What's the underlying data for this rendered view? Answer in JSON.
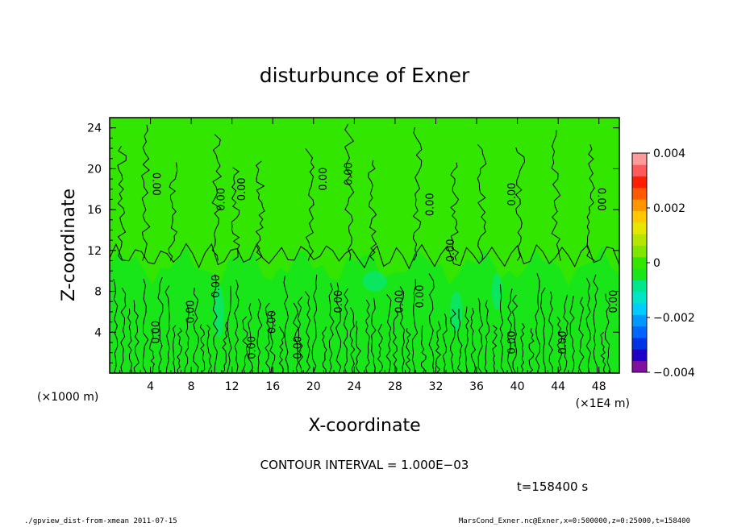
{
  "chart_data": {
    "type": "heatmap",
    "title": "disturbunce of Exner",
    "xlabel": "X-coordinate",
    "ylabel": "Z-coordinate",
    "x_unit_left": "(×1000 m)",
    "x_unit_right": "(×1E4 m)",
    "xlim": [
      0,
      50
    ],
    "ylim": [
      0,
      25
    ],
    "x_ticks": [
      4,
      8,
      12,
      16,
      20,
      24,
      28,
      32,
      36,
      40,
      44,
      48
    ],
    "y_ticks": [
      4,
      8,
      12,
      16,
      20,
      24
    ],
    "colorbar": {
      "min": -0.004,
      "max": 0.004,
      "tick_values": [
        0.004,
        0.002,
        0,
        -0.002,
        -0.004
      ],
      "tick_labels": [
        "0.004",
        "0.002",
        "0",
        "−0.002",
        "−0.004"
      ],
      "colors": [
        "#7f0f9f",
        "#1f00c8",
        "#0033e6",
        "#0066ff",
        "#0099ff",
        "#00ccff",
        "#00e5c8",
        "#00e68c",
        "#19e619",
        "#33e600",
        "#7fe600",
        "#b4e600",
        "#e6e600",
        "#ffc800",
        "#ff9600",
        "#ff5a00",
        "#ff1e00",
        "#ff5a5a",
        "#ff9a9a"
      ]
    },
    "field_colors": {
      "upper": "#33e600",
      "lower": "#19e619",
      "patch": "#00e68c"
    },
    "contour_labels": [
      {
        "x": 4.6,
        "y": 4.0,
        "text": "0.00",
        "rot": -90
      },
      {
        "x": 8.0,
        "y": 6.0,
        "text": "0.00",
        "rot": -90
      },
      {
        "x": 10.5,
        "y": 8.5,
        "text": "0.00",
        "rot": -90
      },
      {
        "x": 14.0,
        "y": 2.5,
        "text": "0.00",
        "rot": -90
      },
      {
        "x": 16.0,
        "y": 5.0,
        "text": "0.00",
        "rot": -90
      },
      {
        "x": 18.5,
        "y": 2.5,
        "text": "0.00",
        "rot": -90
      },
      {
        "x": 22.5,
        "y": 7.0,
        "text": "0.00",
        "rot": -90
      },
      {
        "x": 28.5,
        "y": 7.0,
        "text": "0.00",
        "rot": -90
      },
      {
        "x": 30.5,
        "y": 7.5,
        "text": "0.00",
        "rot": -90
      },
      {
        "x": 33.5,
        "y": 12.0,
        "text": "0.00",
        "rot": -90
      },
      {
        "x": 39.5,
        "y": 3.0,
        "text": "0.00",
        "rot": -90
      },
      {
        "x": 44.5,
        "y": 3.0,
        "text": "0.00",
        "rot": -90
      },
      {
        "x": 49.5,
        "y": 7.0,
        "text": "0.00",
        "rot": -90
      },
      {
        "x": 4.5,
        "y": 18.5,
        "text": "0.00",
        "rot": 90
      },
      {
        "x": 11.0,
        "y": 17.0,
        "text": "0.00",
        "rot": -90
      },
      {
        "x": 13.0,
        "y": 18.0,
        "text": "0.00",
        "rot": -90
      },
      {
        "x": 21.0,
        "y": 19.0,
        "text": "0.00",
        "rot": -90
      },
      {
        "x": 23.5,
        "y": 19.5,
        "text": "0.00",
        "rot": -90
      },
      {
        "x": 31.5,
        "y": 16.5,
        "text": "0.00",
        "rot": -90
      },
      {
        "x": 39.5,
        "y": 17.5,
        "text": "0.00",
        "rot": -90
      },
      {
        "x": 48.2,
        "y": 17.0,
        "text": "0.00",
        "rot": 90
      }
    ]
  },
  "contour_interval_text": "CONTOUR INTERVAL = 1.000E−03",
  "time_text": "t=158400 s",
  "footer_left": "./gpview_dist-from-xmean  2011-07-15",
  "footer_right": "MarsCond_Exner.nc@Exner,x=0:500000,z=0:25000,t=158400"
}
